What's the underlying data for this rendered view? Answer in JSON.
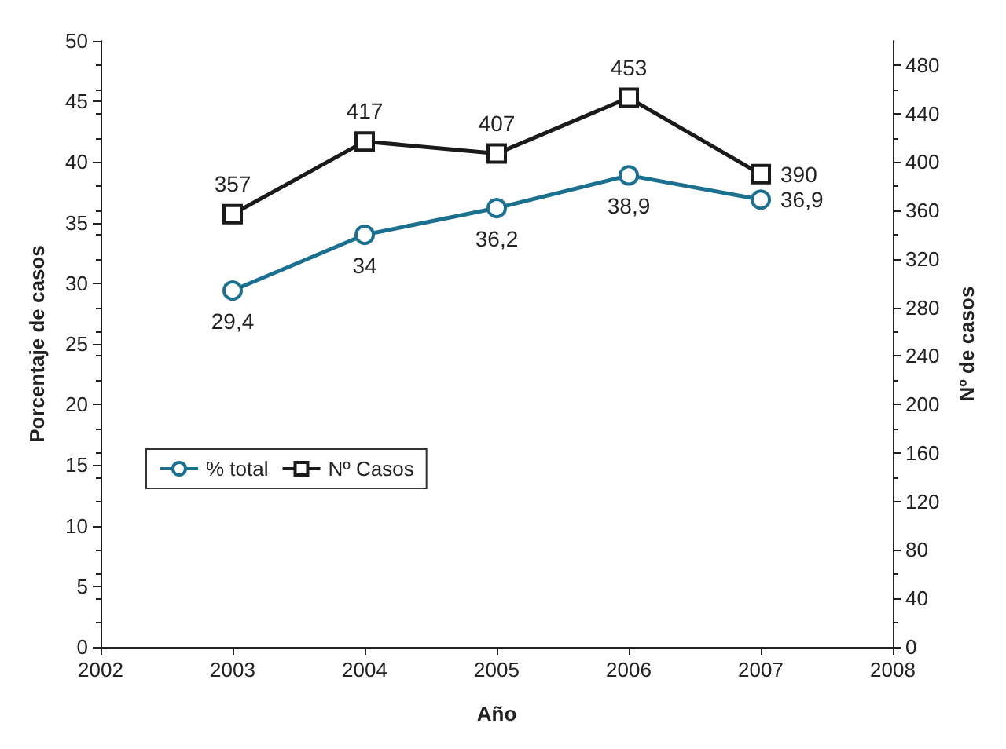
{
  "chart_data": {
    "type": "line",
    "xlabel": "Año",
    "ylabel": "Porcentaje de casos",
    "y2label": "Nº de casos",
    "x": [
      2003,
      2004,
      2005,
      2006,
      2007
    ],
    "series": [
      {
        "name": "% total",
        "color": "#1b6f8f",
        "values": [
          29.4,
          34,
          36.2,
          38.9,
          36.9
        ],
        "value_labels": [
          "29,4",
          "34",
          "36,2",
          "38,9",
          "36,9"
        ],
        "marker": "circle"
      },
      {
        "name": "Nº Casos",
        "color": "#1a1a1a",
        "values": [
          357,
          417,
          407,
          453,
          390
        ],
        "value_labels": [
          "357",
          "417",
          "407",
          "453",
          "390"
        ],
        "marker": "square",
        "axis": "y2"
      }
    ],
    "xlim": [
      2002,
      2008
    ],
    "xticks": [
      2002,
      2003,
      2004,
      2005,
      2006,
      2007,
      2008
    ],
    "ylim": [
      0,
      50
    ],
    "yticks": [
      0,
      5,
      10,
      15,
      20,
      25,
      30,
      35,
      40,
      45,
      50
    ],
    "y2lim": [
      0,
      500
    ],
    "y2ticks": [
      0,
      40,
      80,
      120,
      160,
      200,
      240,
      280,
      320,
      360,
      400,
      440,
      480
    ],
    "grid": false,
    "legend": "left",
    "line_style": "solid"
  }
}
